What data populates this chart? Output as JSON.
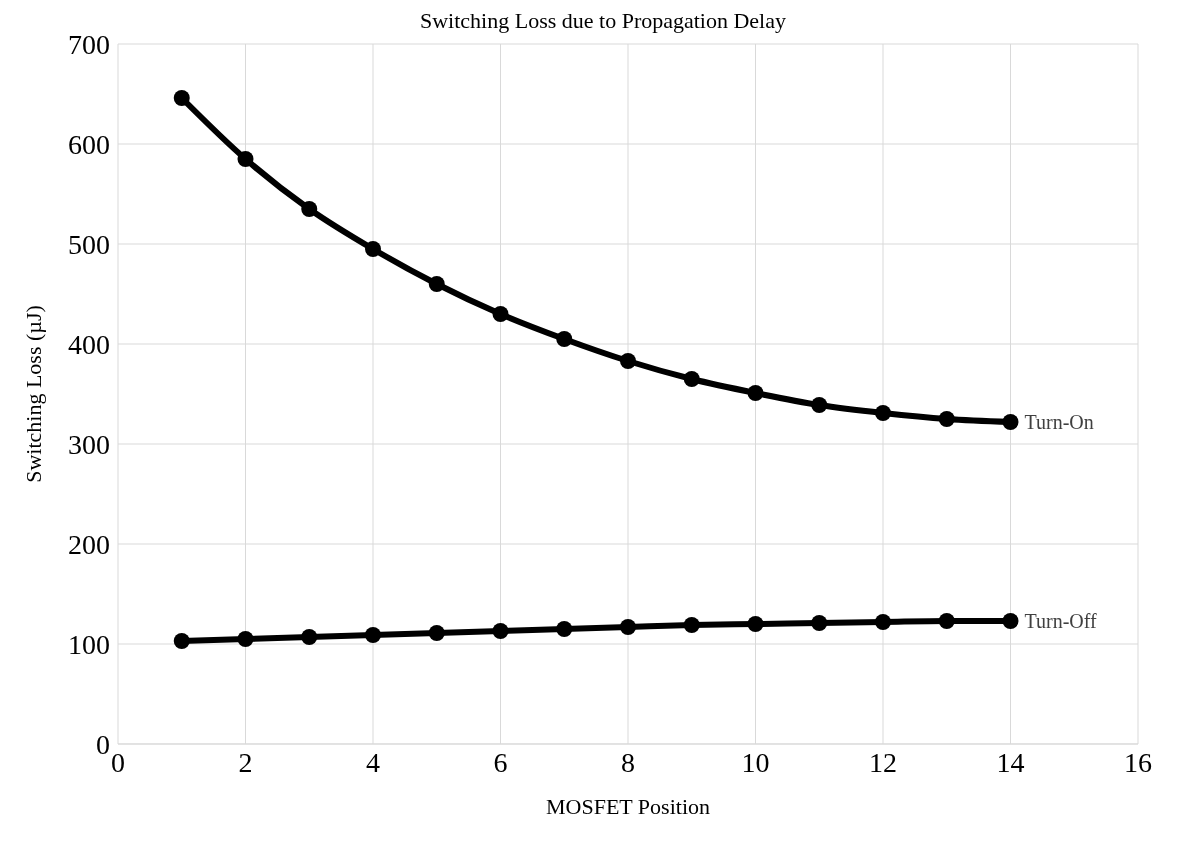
{
  "chart_data": {
    "type": "line",
    "title": "Switching Loss due to Propagation Delay",
    "xlabel": "MOSFET Position",
    "ylabel": "Switching Loss (µJ)",
    "x": [
      1,
      2,
      3,
      4,
      5,
      6,
      7,
      8,
      9,
      10,
      11,
      12,
      13,
      14
    ],
    "series": [
      {
        "name": "Turn-On",
        "color": "#000000",
        "values": [
          646,
          585,
          535,
          495,
          460,
          430,
          405,
          383,
          365,
          351,
          339,
          331,
          325,
          322
        ]
      },
      {
        "name": "Turn-Off",
        "color": "#000000",
        "values": [
          103,
          105,
          107,
          109,
          111,
          113,
          115,
          117,
          119,
          120,
          121,
          122,
          123,
          123
        ]
      }
    ],
    "xlim": [
      0,
      16
    ],
    "xticks": [
      0,
      2,
      4,
      6,
      8,
      10,
      12,
      14,
      16
    ],
    "ylim": [
      0,
      700
    ],
    "yticks": [
      0,
      100,
      200,
      300,
      400,
      500,
      600,
      700
    ],
    "grid": true,
    "marker": "circle",
    "line_style": "solid"
  }
}
